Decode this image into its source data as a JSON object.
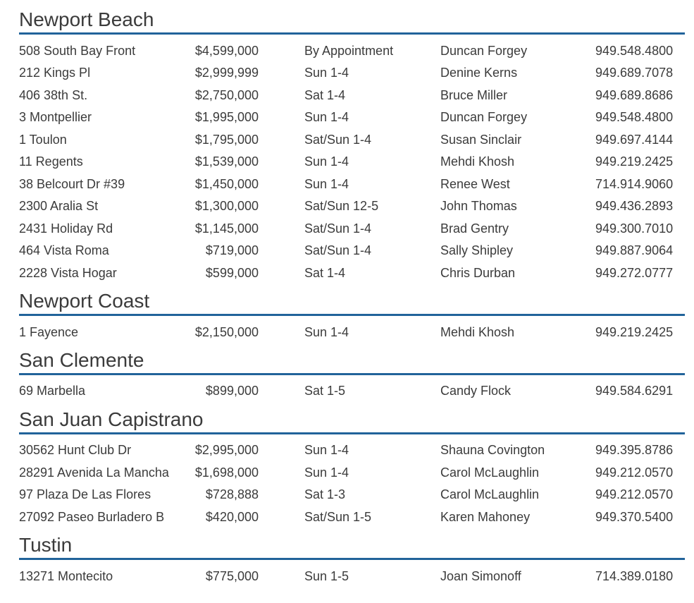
{
  "colors": {
    "rule": "#21639a",
    "text": "#3b3b3b"
  },
  "columns": [
    "address",
    "price",
    "time",
    "agent",
    "phone"
  ],
  "sections": [
    {
      "title": "Newport Beach",
      "listings": [
        {
          "address": "508 South Bay Front",
          "price": "$4,599,000",
          "time": "By Appointment",
          "agent": "Duncan Forgey",
          "phone": "949.548.4800"
        },
        {
          "address": "212 Kings Pl",
          "price": "$2,999,999",
          "time": "Sun 1-4",
          "agent": "Denine Kerns",
          "phone": "949.689.7078"
        },
        {
          "address": "406 38th St.",
          "price": "$2,750,000",
          "time": "Sat 1-4",
          "agent": "Bruce Miller",
          "phone": "949.689.8686"
        },
        {
          "address": "3 Montpellier",
          "price": "$1,995,000",
          "time": "Sun 1-4",
          "agent": "Duncan Forgey",
          "phone": "949.548.4800"
        },
        {
          "address": "1 Toulon",
          "price": "$1,795,000",
          "time": "Sat/Sun 1-4",
          "agent": "Susan Sinclair",
          "phone": "949.697.4144"
        },
        {
          "address": "11 Regents",
          "price": "$1,539,000",
          "time": "Sun 1-4",
          "agent": "Mehdi Khosh",
          "phone": "949.219.2425"
        },
        {
          "address": "38 Belcourt Dr #39",
          "price": "$1,450,000",
          "time": "Sun 1-4",
          "agent": "Renee West",
          "phone": "714.914.9060"
        },
        {
          "address": "2300 Aralia St",
          "price": "$1,300,000",
          "time": "Sat/Sun 12-5",
          "agent": "John Thomas",
          "phone": "949.436.2893"
        },
        {
          "address": "2431 Holiday Rd",
          "price": "$1,145,000",
          "time": "Sat/Sun 1-4",
          "agent": "Brad Gentry",
          "phone": "949.300.7010"
        },
        {
          "address": "464 Vista Roma",
          "price": "$719,000",
          "time": "Sat/Sun 1-4",
          "agent": "Sally Shipley",
          "phone": "949.887.9064"
        },
        {
          "address": "2228 Vista Hogar",
          "price": "$599,000",
          "time": "Sat 1-4",
          "agent": "Chris Durban",
          "phone": "949.272.0777"
        }
      ]
    },
    {
      "title": "Newport Coast",
      "listings": [
        {
          "address": "1 Fayence",
          "price": "$2,150,000",
          "time": "Sun 1-4",
          "agent": "Mehdi Khosh",
          "phone": "949.219.2425"
        }
      ]
    },
    {
      "title": "San Clemente",
      "listings": [
        {
          "address": "69 Marbella",
          "price": "$899,000",
          "time": "Sat 1-5",
          "agent": "Candy Flock",
          "phone": "949.584.6291"
        }
      ]
    },
    {
      "title": "San Juan Capistrano",
      "listings": [
        {
          "address": "30562 Hunt Club Dr",
          "price": "$2,995,000",
          "time": "Sun 1-4",
          "agent": "Shauna Covington",
          "phone": "949.395.8786"
        },
        {
          "address": "28291 Avenida La Mancha",
          "price": "$1,698,000",
          "time": "Sun 1-4",
          "agent": "Carol McLaughlin",
          "phone": "949.212.0570"
        },
        {
          "address": "97 Plaza De Las Flores",
          "price": "$728,888",
          "time": "Sat 1-3",
          "agent": "Carol McLaughlin",
          "phone": "949.212.0570"
        },
        {
          "address": "27092 Paseo Burladero B",
          "price": "$420,000",
          "time": "Sat/Sun 1-5",
          "agent": "Karen Mahoney",
          "phone": "949.370.5400"
        }
      ]
    },
    {
      "title": "Tustin",
      "listings": [
        {
          "address": "13271 Montecito",
          "price": "$775,000",
          "time": "Sun 1-5",
          "agent": "Joan Simonoff",
          "phone": "714.389.0180"
        }
      ]
    }
  ]
}
